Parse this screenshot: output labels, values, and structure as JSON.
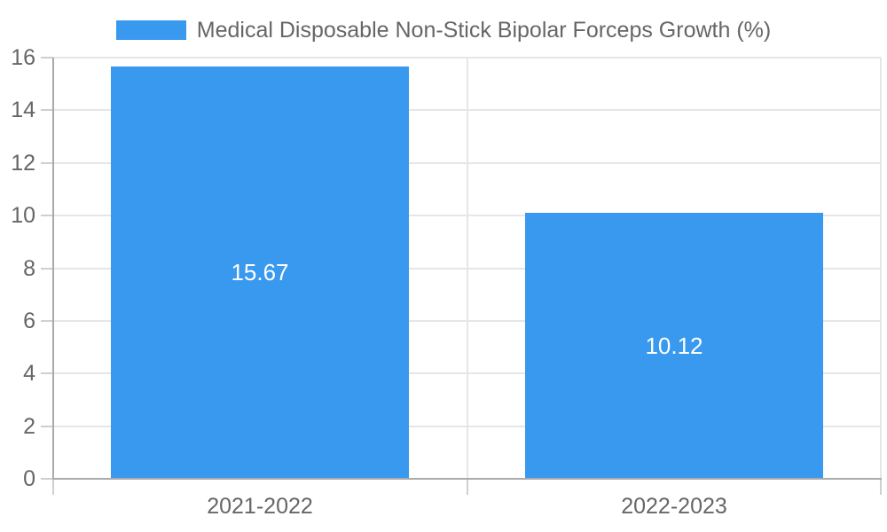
{
  "chart_data": {
    "type": "bar",
    "title": "Medical Disposable Non-Stick Bipolar Forceps Growth (%)",
    "legend_position": "top",
    "categories": [
      "2021-2022",
      "2022-2023"
    ],
    "series": [
      {
        "name": "Medical Disposable Non-Stick Bipolar Forceps Growth (%)",
        "values": [
          15.67,
          10.12
        ]
      }
    ],
    "data_labels": [
      "15.67",
      "10.12"
    ],
    "ylim": [
      0,
      16
    ],
    "yticks": [
      0,
      2,
      4,
      6,
      8,
      10,
      12,
      14,
      16
    ],
    "xlabel": "",
    "ylabel": "",
    "grid": true
  },
  "colors": {
    "bar": "#3999EE",
    "bar_label": "#ffffff",
    "axis_text": "#666666",
    "axis_line": "#aaaaaa",
    "gridline": "#e6e6e6",
    "tick": "#cfcfcf",
    "background": "#ffffff"
  }
}
